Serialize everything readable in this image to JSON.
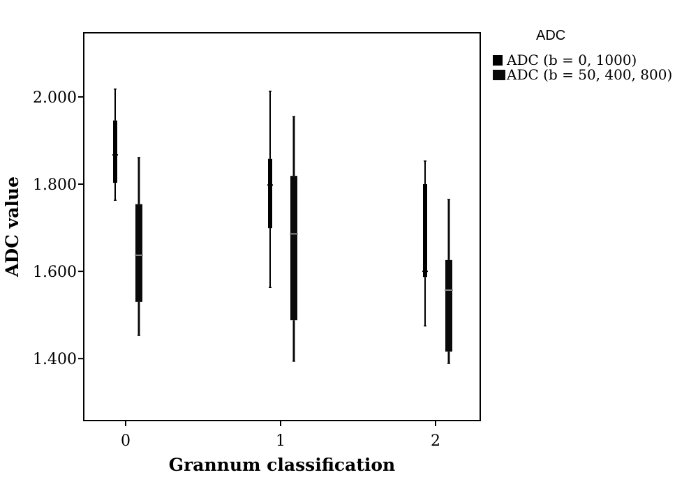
{
  "chart_data": {
    "type": "box",
    "x_label": "Grannum classification",
    "y_label": "ADC value",
    "legend_title": "ADC",
    "legend": "right",
    "categories": [
      "0",
      "1",
      "2"
    ],
    "ylim": [
      1.258,
      2.147
    ],
    "yticks": [
      {
        "value": 1.4,
        "label": "1.400"
      },
      {
        "value": 1.6,
        "label": "1.600"
      },
      {
        "value": 1.8,
        "label": "1.800"
      },
      {
        "value": 2.0,
        "label": "2.000"
      }
    ],
    "series": [
      {
        "name": "ADC (b = 0, 1000)",
        "color": "#000000",
        "min": [
          1.763,
          1.563,
          1.475
        ],
        "q1": [
          1.803,
          1.699,
          1.587
        ],
        "median": [
          1.867,
          1.798,
          1.6
        ],
        "q3": [
          1.946,
          1.858,
          1.8
        ],
        "max": [
          2.018,
          2.013,
          1.853
        ]
      },
      {
        "name": "ADC (b = 50, 400, 800)",
        "color": "#0a0a0a",
        "min": [
          1.453,
          1.394,
          1.389
        ],
        "q1": [
          1.53,
          1.488,
          1.416
        ],
        "median": [
          1.637,
          1.686,
          1.557
        ],
        "q3": [
          1.754,
          1.819,
          1.626
        ],
        "max": [
          1.861,
          1.955,
          1.765
        ]
      }
    ]
  }
}
